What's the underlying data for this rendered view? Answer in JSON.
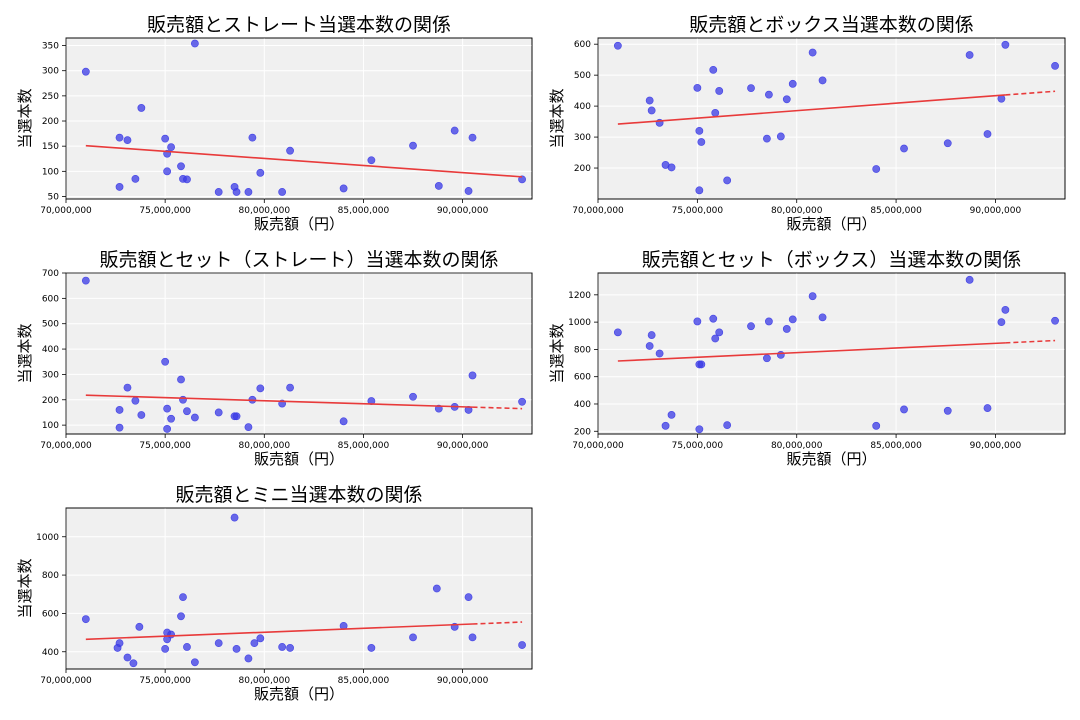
{
  "chart_data": [
    {
      "type": "scatter",
      "title": "販売額とストレート当選本数の関係",
      "xlabel": "販売額（円）",
      "ylabel": "当選本数",
      "xlim": [
        70000000,
        93500000
      ],
      "ylim": [
        45,
        365
      ],
      "xticks": [
        70000000,
        75000000,
        80000000,
        85000000,
        90000000
      ],
      "xtick_labels": [
        "70,000,000",
        "75,000,000",
        "80,000,000",
        "85,000,000",
        "90,000,000"
      ],
      "yticks": [
        50,
        100,
        150,
        200,
        250,
        300,
        350
      ],
      "ytick_labels": [
        "50",
        "100",
        "150",
        "200",
        "250",
        "300",
        "350"
      ],
      "grid": true,
      "points": [
        [
          71000000,
          298
        ],
        [
          72700000,
          167
        ],
        [
          72700000,
          69
        ],
        [
          73100000,
          162
        ],
        [
          73500000,
          85
        ],
        [
          73800000,
          226
        ],
        [
          75000000,
          165
        ],
        [
          75100000,
          135
        ],
        [
          75100000,
          100
        ],
        [
          75300000,
          148
        ],
        [
          75800000,
          110
        ],
        [
          75900000,
          85
        ],
        [
          76100000,
          84
        ],
        [
          76500000,
          354
        ],
        [
          77700000,
          59
        ],
        [
          78500000,
          69
        ],
        [
          78600000,
          59
        ],
        [
          79200000,
          59
        ],
        [
          79400000,
          167
        ],
        [
          79800000,
          97
        ],
        [
          80900000,
          59
        ],
        [
          81300000,
          141
        ],
        [
          84000000,
          66
        ],
        [
          85400000,
          122
        ],
        [
          87500000,
          151
        ],
        [
          88800000,
          71
        ],
        [
          89600000,
          181
        ],
        [
          90300000,
          61
        ],
        [
          90500000,
          167
        ],
        [
          93000000,
          84
        ]
      ],
      "trend": {
        "x_start": 71000000,
        "x_end": 93000000,
        "y_start": 151,
        "y_end": 89,
        "dashed_from": null
      }
    },
    {
      "type": "scatter",
      "title": "販売額とボックス当選本数の関係",
      "xlabel": "販売額（円）",
      "ylabel": "当選本数",
      "xlim": [
        70000000,
        93500000
      ],
      "ylim": [
        100,
        620
      ],
      "xticks": [
        70000000,
        75000000,
        80000000,
        85000000,
        90000000
      ],
      "xtick_labels": [
        "70,000,000",
        "75,000,000",
        "80,000,000",
        "85,000,000",
        "90,000,000"
      ],
      "yticks": [
        200,
        300,
        400,
        500,
        600
      ],
      "ytick_labels": [
        "200",
        "300",
        "400",
        "500",
        "600"
      ],
      "grid": true,
      "points": [
        [
          71000000,
          595
        ],
        [
          72600000,
          418
        ],
        [
          72700000,
          386
        ],
        [
          73100000,
          346
        ],
        [
          73400000,
          210
        ],
        [
          73700000,
          202
        ],
        [
          75000000,
          459
        ],
        [
          75100000,
          320
        ],
        [
          75200000,
          284
        ],
        [
          75100000,
          128
        ],
        [
          75800000,
          517
        ],
        [
          75900000,
          378
        ],
        [
          76100000,
          449
        ],
        [
          76500000,
          160
        ],
        [
          77700000,
          458
        ],
        [
          78500000,
          295
        ],
        [
          78600000,
          437
        ],
        [
          79200000,
          302
        ],
        [
          79500000,
          422
        ],
        [
          79800000,
          472
        ],
        [
          80800000,
          573
        ],
        [
          81300000,
          483
        ],
        [
          84000000,
          197
        ],
        [
          85400000,
          263
        ],
        [
          87600000,
          280
        ],
        [
          88700000,
          565
        ],
        [
          89600000,
          310
        ],
        [
          90300000,
          424
        ],
        [
          90500000,
          598
        ],
        [
          93000000,
          530
        ]
      ],
      "trend": {
        "x_start": 71000000,
        "x_end": 93000000,
        "y_start": 342,
        "y_end": 448,
        "dashed_from": 90500000
      }
    },
    {
      "type": "scatter",
      "title": "販売額とセット（ストレート）当選本数の関係",
      "xlabel": "販売額（円）",
      "ylabel": "当選本数",
      "xlim": [
        70000000,
        93500000
      ],
      "ylim": [
        65,
        700
      ],
      "xticks": [
        70000000,
        75000000,
        80000000,
        85000000,
        90000000
      ],
      "xtick_labels": [
        "70,000,000",
        "75,000,000",
        "80,000,000",
        "85,000,000",
        "90,000,000"
      ],
      "yticks": [
        100,
        200,
        300,
        400,
        500,
        600,
        700
      ],
      "ytick_labels": [
        "100",
        "200",
        "300",
        "400",
        "500",
        "600",
        "700"
      ],
      "grid": true,
      "points": [
        [
          71000000,
          670
        ],
        [
          72700000,
          160
        ],
        [
          72700000,
          90
        ],
        [
          73100000,
          248
        ],
        [
          73500000,
          196
        ],
        [
          73800000,
          140
        ],
        [
          75000000,
          350
        ],
        [
          75100000,
          165
        ],
        [
          75100000,
          85
        ],
        [
          75300000,
          125
        ],
        [
          75800000,
          280
        ],
        [
          75900000,
          200
        ],
        [
          76100000,
          155
        ],
        [
          76500000,
          130
        ],
        [
          77700000,
          150
        ],
        [
          78500000,
          135
        ],
        [
          78600000,
          135
        ],
        [
          79200000,
          92
        ],
        [
          79400000,
          200
        ],
        [
          79800000,
          245
        ],
        [
          80900000,
          185
        ],
        [
          81300000,
          248
        ],
        [
          84000000,
          115
        ],
        [
          85400000,
          195
        ],
        [
          87500000,
          212
        ],
        [
          88800000,
          165
        ],
        [
          89600000,
          172
        ],
        [
          90300000,
          160
        ],
        [
          90500000,
          296
        ],
        [
          93000000,
          192
        ]
      ],
      "trend": {
        "x_start": 71000000,
        "x_end": 93000000,
        "y_start": 218,
        "y_end": 165,
        "dashed_from": 90500000
      }
    },
    {
      "type": "scatter",
      "title": "販売額とセット（ボックス）当選本数の関係",
      "xlabel": "販売額（円）",
      "ylabel": "当選本数",
      "xlim": [
        70000000,
        93500000
      ],
      "ylim": [
        180,
        1360
      ],
      "xticks": [
        70000000,
        75000000,
        80000000,
        85000000,
        90000000
      ],
      "xtick_labels": [
        "70,000,000",
        "75,000,000",
        "80,000,000",
        "85,000,000",
        "90,000,000"
      ],
      "yticks": [
        200,
        400,
        600,
        800,
        1000,
        1200
      ],
      "ytick_labels": [
        "200",
        "400",
        "600",
        "800",
        "1000",
        "1200"
      ],
      "grid": true,
      "points": [
        [
          71000000,
          925
        ],
        [
          72600000,
          825
        ],
        [
          72700000,
          905
        ],
        [
          73100000,
          770
        ],
        [
          73400000,
          240
        ],
        [
          73700000,
          320
        ],
        [
          75000000,
          1005
        ],
        [
          75100000,
          690
        ],
        [
          75200000,
          690
        ],
        [
          75100000,
          215
        ],
        [
          75800000,
          1025
        ],
        [
          75900000,
          880
        ],
        [
          76100000,
          925
        ],
        [
          76500000,
          245
        ],
        [
          77700000,
          970
        ],
        [
          78500000,
          735
        ],
        [
          78600000,
          1005
        ],
        [
          79200000,
          760
        ],
        [
          79500000,
          950
        ],
        [
          79800000,
          1020
        ],
        [
          80800000,
          1190
        ],
        [
          81300000,
          1035
        ],
        [
          84000000,
          240
        ],
        [
          85400000,
          360
        ],
        [
          87600000,
          350
        ],
        [
          88700000,
          1310
        ],
        [
          89600000,
          370
        ],
        [
          90300000,
          1000
        ],
        [
          90500000,
          1090
        ],
        [
          93000000,
          1010
        ]
      ],
      "trend": {
        "x_start": 71000000,
        "x_end": 93000000,
        "y_start": 715,
        "y_end": 865,
        "dashed_from": 90500000
      }
    },
    {
      "type": "scatter",
      "title": "販売額とミニ当選本数の関係",
      "xlabel": "販売額（円）",
      "ylabel": "当選本数",
      "xlim": [
        70000000,
        93500000
      ],
      "ylim": [
        310,
        1150
      ],
      "xticks": [
        70000000,
        75000000,
        80000000,
        85000000,
        90000000
      ],
      "xtick_labels": [
        "70,000,000",
        "75,000,000",
        "80,000,000",
        "85,000,000",
        "90,000,000"
      ],
      "yticks": [
        400,
        600,
        800,
        1000
      ],
      "ytick_labels": [
        "400",
        "600",
        "800",
        "1000"
      ],
      "grid": true,
      "points": [
        [
          71000000,
          570
        ],
        [
          72600000,
          420
        ],
        [
          72700000,
          445
        ],
        [
          73100000,
          370
        ],
        [
          73400000,
          340
        ],
        [
          73700000,
          530
        ],
        [
          75000000,
          415
        ],
        [
          75100000,
          465
        ],
        [
          75100000,
          500
        ],
        [
          75300000,
          490
        ],
        [
          75800000,
          585
        ],
        [
          75900000,
          685
        ],
        [
          76100000,
          425
        ],
        [
          76500000,
          345
        ],
        [
          77700000,
          445
        ],
        [
          78500000,
          1100
        ],
        [
          78600000,
          415
        ],
        [
          79200000,
          365
        ],
        [
          79500000,
          445
        ],
        [
          79800000,
          470
        ],
        [
          80900000,
          425
        ],
        [
          81300000,
          420
        ],
        [
          84000000,
          535
        ],
        [
          85400000,
          420
        ],
        [
          87500000,
          475
        ],
        [
          88700000,
          730
        ],
        [
          89600000,
          530
        ],
        [
          90300000,
          685
        ],
        [
          90500000,
          475
        ],
        [
          93000000,
          435
        ]
      ],
      "trend": {
        "x_start": 71000000,
        "x_end": 93000000,
        "y_start": 465,
        "y_end": 555,
        "dashed_from": 90500000
      }
    }
  ]
}
